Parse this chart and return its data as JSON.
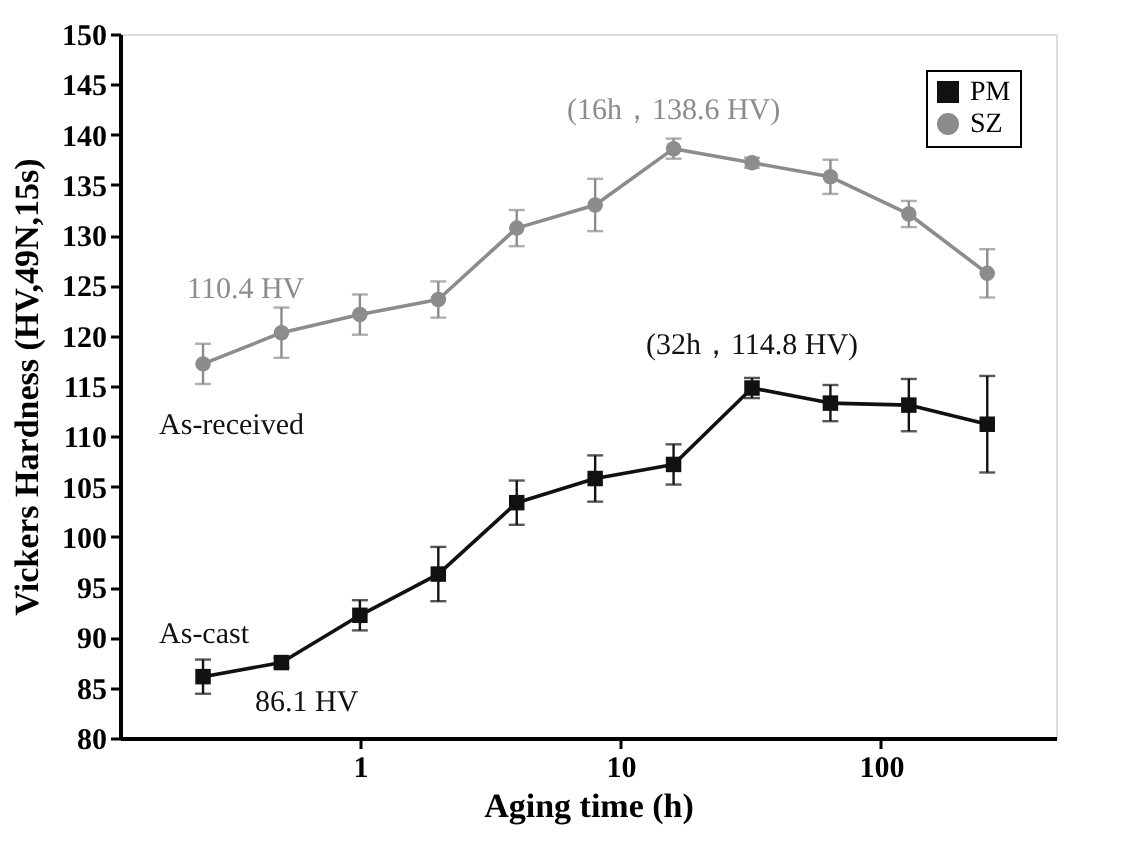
{
  "chart_data": {
    "type": "line",
    "xlabel": "Aging time (h)",
    "ylabel": "Vickers Hardness (HV,49N,15s)",
    "x": [
      0.25,
      0.5,
      1,
      2,
      4,
      8,
      16,
      32,
      64,
      128,
      256
    ],
    "series": [
      {
        "name": "PM",
        "color": "#111111",
        "marker": "square",
        "values": [
          86.1,
          87.5,
          92.2,
          96.3,
          103.4,
          105.8,
          107.2,
          114.8,
          113.3,
          113.1,
          111.2
        ],
        "errors": [
          1.7,
          0.5,
          1.5,
          2.7,
          2.2,
          2.3,
          2,
          1,
          1.8,
          2.6,
          4.8
        ]
      },
      {
        "name": "SZ",
        "color": "#8c8c8c",
        "marker": "circle",
        "values": [
          117.2,
          120.3,
          122.1,
          123.6,
          130.7,
          133.0,
          138.6,
          137.2,
          135.8,
          132.1,
          126.2
        ],
        "errors": [
          2,
          2.5,
          2,
          1.8,
          1.8,
          2.6,
          1,
          0.5,
          1.7,
          1.3,
          2.4
        ]
      }
    ],
    "log": "x",
    "xlim": [
      0.12,
      470
    ],
    "xticks": [
      1,
      10,
      100
    ],
    "ylim": [
      80,
      150
    ],
    "yticks": [
      80,
      85,
      90,
      95,
      100,
      105,
      110,
      115,
      120,
      125,
      130,
      135,
      140,
      145,
      150
    ],
    "grid": false,
    "legend": "top right",
    "line_style": "solid",
    "annotations": [
      {
        "text": "110.4 HV",
        "x": 0.25,
        "y": 117.2
      },
      {
        "text": "As-received",
        "x": 0.25,
        "y": 117.2
      },
      {
        "text": "As-cast",
        "x": 0.25,
        "y": 86.1
      },
      {
        "text": "86.1 HV",
        "x": 0.25,
        "y": 86.1
      },
      {
        "text": "(16h，138.6 HV)",
        "x": 16,
        "y": 138.6
      },
      {
        "text": "(32h，114.8 HV)",
        "x": 32,
        "y": 114.8
      }
    ]
  }
}
